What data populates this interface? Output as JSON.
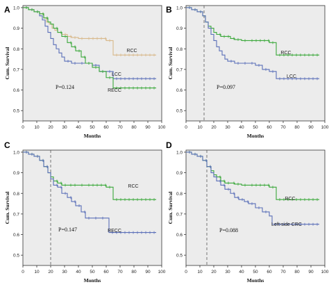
{
  "chart_data": [
    {
      "type": "line",
      "panel_label": "A",
      "xlabel": "Months",
      "ylabel": "Cum. Survival",
      "xticks": [
        "0",
        "10",
        "20",
        "30",
        "40",
        "50",
        "60",
        "70",
        "80",
        "90",
        "100"
      ],
      "yticks": [
        "0.5",
        "0.6",
        "0.7",
        "0.8",
        "0.9",
        "1.0"
      ],
      "xlim": [
        0,
        100
      ],
      "ylim": [
        0.45,
        1.01
      ],
      "pvalue": "P=0.124",
      "landmark_month": null,
      "series": [
        {
          "name": "RCC",
          "color": "#d8b88a",
          "x": [
            0,
            4,
            8,
            12,
            15,
            17,
            19,
            21,
            23,
            25,
            28,
            32,
            35,
            40,
            45,
            60,
            65,
            96
          ],
          "y": [
            1.0,
            0.99,
            0.98,
            0.97,
            0.95,
            0.93,
            0.92,
            0.9,
            0.89,
            0.88,
            0.87,
            0.86,
            0.855,
            0.85,
            0.85,
            0.84,
            0.77,
            0.77
          ]
        },
        {
          "name": "LCC",
          "color": "#5a6fb8",
          "x": [
            0,
            4,
            8,
            12,
            14,
            16,
            18,
            20,
            22,
            24,
            26,
            28,
            30,
            35,
            40,
            45,
            50,
            55,
            60,
            65,
            96
          ],
          "y": [
            1.0,
            0.99,
            0.98,
            0.96,
            0.94,
            0.91,
            0.88,
            0.85,
            0.82,
            0.8,
            0.78,
            0.76,
            0.74,
            0.73,
            0.73,
            0.73,
            0.72,
            0.69,
            0.69,
            0.655,
            0.655
          ]
        },
        {
          "name": "RECC",
          "color": "#3aa83a",
          "x": [
            0,
            4,
            8,
            12,
            15,
            18,
            20,
            22,
            25,
            28,
            32,
            35,
            38,
            42,
            45,
            50,
            55,
            60,
            65,
            96
          ],
          "y": [
            1.0,
            0.99,
            0.98,
            0.97,
            0.95,
            0.93,
            0.92,
            0.9,
            0.88,
            0.86,
            0.83,
            0.81,
            0.79,
            0.76,
            0.73,
            0.71,
            0.69,
            0.66,
            0.61,
            0.61
          ]
        }
      ],
      "labels": [
        "RCC",
        "LCC",
        "RECC"
      ]
    },
    {
      "type": "line",
      "panel_label": "B",
      "xlabel": "Months",
      "ylabel": "Cum. Survival",
      "xticks": [
        "0",
        "10",
        "20",
        "30",
        "40",
        "50",
        "60",
        "70",
        "80",
        "90",
        "100"
      ],
      "yticks": [
        "0.5",
        "0.6",
        "0.7",
        "0.8",
        "0.9",
        "1.0"
      ],
      "xlim": [
        0,
        100
      ],
      "ylim": [
        0.45,
        1.01
      ],
      "pvalue": "P=0.097",
      "landmark_month": 13,
      "series": [
        {
          "name": "RCC",
          "color": "#3aa83a",
          "x": [
            0,
            4,
            8,
            12,
            14,
            16,
            18,
            20,
            22,
            25,
            28,
            32,
            35,
            40,
            45,
            60,
            65,
            96
          ],
          "y": [
            1.0,
            0.99,
            0.98,
            0.96,
            0.93,
            0.91,
            0.9,
            0.88,
            0.87,
            0.86,
            0.86,
            0.85,
            0.845,
            0.84,
            0.84,
            0.83,
            0.77,
            0.77
          ]
        },
        {
          "name": "LCC",
          "color": "#5a6fb8",
          "x": [
            0,
            4,
            8,
            12,
            14,
            16,
            18,
            20,
            22,
            24,
            26,
            28,
            30,
            35,
            40,
            45,
            50,
            55,
            60,
            65,
            96
          ],
          "y": [
            1.0,
            0.99,
            0.98,
            0.96,
            0.93,
            0.9,
            0.87,
            0.84,
            0.81,
            0.79,
            0.77,
            0.75,
            0.74,
            0.73,
            0.73,
            0.73,
            0.72,
            0.7,
            0.69,
            0.655,
            0.655
          ]
        }
      ],
      "labels": [
        "RCC",
        "LCC"
      ]
    },
    {
      "type": "line",
      "panel_label": "C",
      "xlabel": "Months",
      "ylabel": "Cum. Survival",
      "xticks": [
        "0",
        "10",
        "20",
        "30",
        "40",
        "50",
        "60",
        "70",
        "80",
        "90",
        "100"
      ],
      "yticks": [
        "0.5",
        "0.6",
        "0.7",
        "0.8",
        "0.9",
        "1.0"
      ],
      "xlim": [
        0,
        100
      ],
      "ylim": [
        0.45,
        1.01
      ],
      "pvalue": "P=0.147",
      "landmark_month": 20,
      "series": [
        {
          "name": "RCC",
          "color": "#3aa83a",
          "x": [
            0,
            4,
            8,
            12,
            15,
            18,
            20,
            22,
            25,
            28,
            32,
            35,
            40,
            45,
            60,
            65,
            96
          ],
          "y": [
            1.0,
            0.99,
            0.98,
            0.96,
            0.93,
            0.9,
            0.88,
            0.86,
            0.85,
            0.84,
            0.84,
            0.84,
            0.84,
            0.84,
            0.83,
            0.77,
            0.77
          ]
        },
        {
          "name": "RECC",
          "color": "#5a6fb8",
          "x": [
            0,
            4,
            8,
            12,
            15,
            18,
            20,
            22,
            25,
            28,
            32,
            35,
            38,
            42,
            45,
            50,
            55,
            60,
            62,
            96
          ],
          "y": [
            1.0,
            0.99,
            0.98,
            0.96,
            0.93,
            0.9,
            0.87,
            0.84,
            0.83,
            0.8,
            0.78,
            0.76,
            0.74,
            0.71,
            0.68,
            0.68,
            0.68,
            0.68,
            0.61,
            0.61
          ]
        }
      ],
      "labels": [
        "RCC",
        "RECC"
      ]
    },
    {
      "type": "line",
      "panel_label": "D",
      "xlabel": "Months",
      "ylabel": "Cum. Survival",
      "xticks": [
        "0",
        "10",
        "20",
        "30",
        "40",
        "50",
        "60",
        "70",
        "80",
        "90",
        "100"
      ],
      "yticks": [
        "0.5",
        "0.6",
        "0.7",
        "0.8",
        "0.9",
        "1.0"
      ],
      "xlim": [
        0,
        100
      ],
      "ylim": [
        0.45,
        1.01
      ],
      "pvalue": "P=0.088",
      "landmark_month": 15,
      "series": [
        {
          "name": "RCC",
          "color": "#3aa83a",
          "x": [
            0,
            4,
            8,
            12,
            15,
            18,
            20,
            22,
            25,
            28,
            32,
            35,
            40,
            45,
            60,
            65,
            96
          ],
          "y": [
            1.0,
            0.99,
            0.98,
            0.96,
            0.93,
            0.91,
            0.89,
            0.88,
            0.86,
            0.85,
            0.85,
            0.845,
            0.84,
            0.84,
            0.83,
            0.77,
            0.77
          ]
        },
        {
          "name": "Left-side CRC",
          "color": "#5a6fb8",
          "x": [
            0,
            4,
            8,
            12,
            15,
            18,
            20,
            22,
            25,
            28,
            32,
            35,
            38,
            42,
            45,
            50,
            55,
            60,
            62,
            96
          ],
          "y": [
            1.0,
            0.99,
            0.98,
            0.96,
            0.93,
            0.9,
            0.88,
            0.86,
            0.84,
            0.82,
            0.8,
            0.78,
            0.77,
            0.76,
            0.75,
            0.73,
            0.71,
            0.69,
            0.65,
            0.65
          ]
        }
      ],
      "labels": [
        "RCC",
        "Left-side CRC"
      ]
    }
  ]
}
